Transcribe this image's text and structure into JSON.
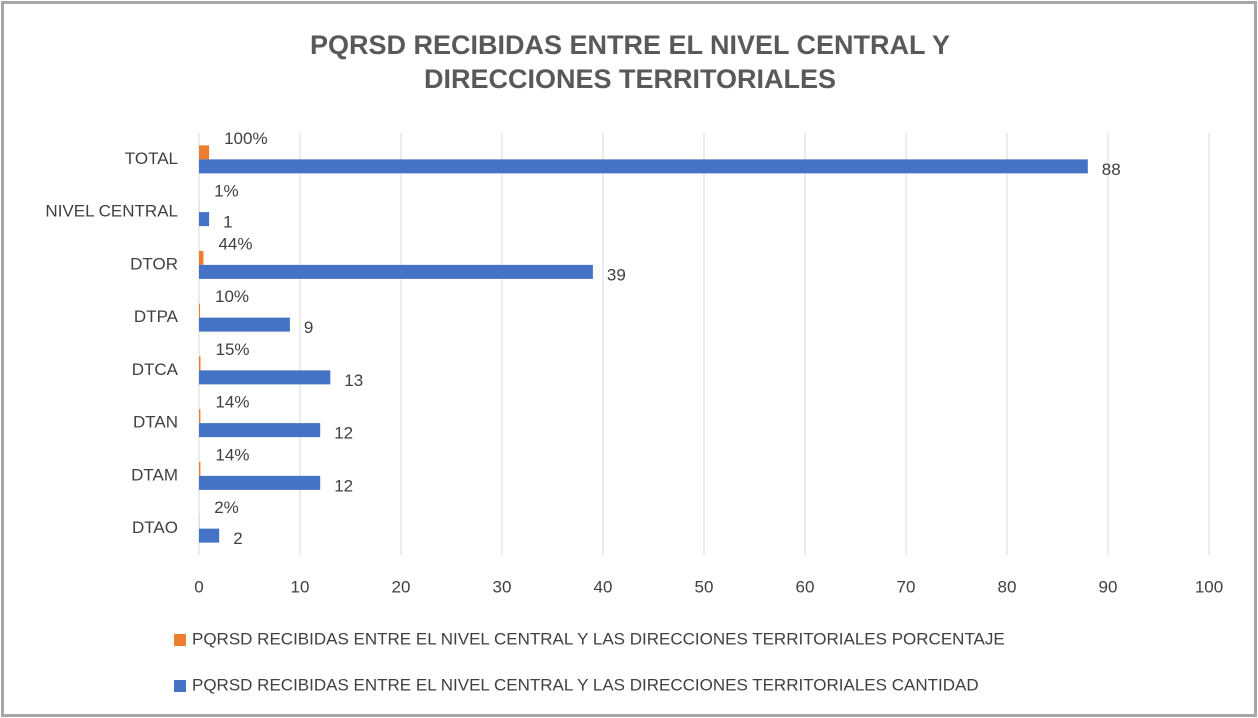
{
  "chart_data": {
    "type": "bar",
    "orientation": "horizontal",
    "title": "PQRSD RECIBIDAS ENTRE EL NIVEL CENTRAL Y DIRECCIONES TERRITORIALES",
    "categories": [
      "TOTAL",
      "NIVEL CENTRAL",
      "DTOR",
      "DTPA",
      "DTCA",
      "DTAN",
      "DTAM",
      "DTAO"
    ],
    "series": [
      {
        "name": "PQRSD RECIBIDAS ENTRE EL NIVEL CENTRAL Y LAS DIRECCIONES TERRITORIALES PORCENTAJE",
        "color": "#ed7d31",
        "values": [
          1,
          0.01,
          0.44,
          0.1,
          0.15,
          0.14,
          0.14,
          0.02
        ],
        "value_labels": [
          "100%",
          "1%",
          "44%",
          "10%",
          "15%",
          "14%",
          "14%",
          "2%"
        ]
      },
      {
        "name": "PQRSD RECIBIDAS ENTRE EL NIVEL CENTRAL Y LAS DIRECCIONES TERRITORIALES CANTIDAD",
        "color": "#4472c4",
        "values": [
          88,
          1,
          39,
          9,
          13,
          12,
          12,
          2
        ]
      }
    ],
    "xlim": [
      0,
      100
    ],
    "xticks": [
      0,
      10,
      20,
      30,
      40,
      50,
      60,
      70,
      80,
      90,
      100
    ],
    "grid": true,
    "legend": "bottom"
  }
}
